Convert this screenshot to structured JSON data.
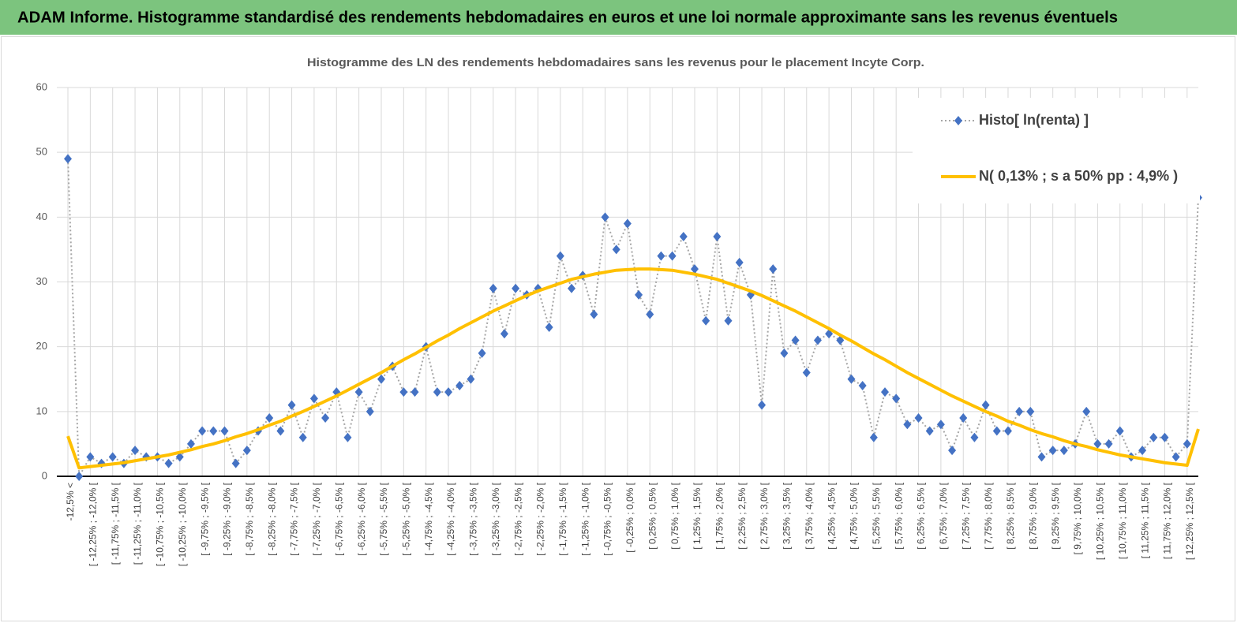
{
  "header": {
    "title": "ADAM Informe. Histogramme standardisé des rendements hebdomadaires en euros et une loi normale approximante sans les revenus éventuels"
  },
  "chart_data": {
    "type": "line",
    "title": "Histogramme  des LN des rendements hebdomadaires sans les  revenus pour le placement Incyte Corp.",
    "categories": [
      "-12,5% <",
      null,
      "[ -12,25% ; -12,0% [",
      null,
      "[ -11,75% ; -11,5% [",
      null,
      "[ -11,25% ; -11,0% [",
      null,
      "[ -10,75% ; -10,5% [",
      null,
      "[ -10,25% ; -10,0% [",
      null,
      "[ -9,75% ; -9,5% [",
      null,
      "[ -9,25% ; -9,0% [",
      null,
      "[ -8,75% ; -8,5% [",
      null,
      "[ -8,25% ; -8,0% [",
      null,
      "[ -7,75% ; -7,5% [",
      null,
      "[ -7,25% ; -7,0% [",
      null,
      "[ -6,75% ; -6,5% [",
      null,
      "[ -6,25% ; -6,0% [",
      null,
      "[ -5,75% ; -5,5% [",
      null,
      "[ -5,25% ; -5,0% [",
      null,
      "[ -4,75% ; -4,5% [",
      null,
      "[ -4,25% ; -4,0% [",
      null,
      "[ -3,75% ; -3,5% [",
      null,
      "[ -3,25% ; -3,0% [",
      null,
      "[ -2,75% ; -2,5% [",
      null,
      "[ -2,25% ; -2,0% [",
      null,
      "[ -1,75% ; -1,5% [",
      null,
      "[ -1,25% ; -1,0% [",
      null,
      "[ -0,75% ; -0,5% [",
      null,
      "[ -0,25% ; 0,0% [",
      null,
      "[ 0,25% ; 0,5% [",
      null,
      "[ 0,75% ; 1,0% [",
      null,
      "[ 1,25% ; 1,5% [",
      null,
      "[ 1,75% ; 2,0% [",
      null,
      "[ 2,25% ; 2,5% [",
      null,
      "[ 2,75% ; 3,0% [",
      null,
      "[ 3,25% ; 3,5% [",
      null,
      "[ 3,75% ; 4,0% [",
      null,
      "[ 4,25% ; 4,5% [",
      null,
      "[ 4,75% ; 5,0% [",
      null,
      "[ 5,25% ; 5,5% [",
      null,
      "[ 5,75% ; 6,0% [",
      null,
      "[ 6,25% ; 6,5% [",
      null,
      "[ 6,75% ; 7,0% [",
      null,
      "[ 7,25% ; 7,5% [",
      null,
      "[ 7,75% ; 8,0% [",
      null,
      "[ 8,25% ; 8,5% [",
      null,
      "[ 8,75% ; 9,0% [",
      null,
      "[ 9,25% ; 9,5% [",
      null,
      "[ 9,75% ; 10,0% [",
      null,
      "[ 10,25% ; 10,5% [",
      null,
      "[ 10,75% ; 11,0% [",
      null,
      "[ 11,25% ; 11,5% [",
      null,
      "[ 11,75% ; 12,0% [",
      null,
      "[ 12,25% ; 12,5% [",
      null
    ],
    "series": [
      {
        "name": "Histo[ ln(renta) ]",
        "color": "#4472c4",
        "line_color": "#a6a6a6",
        "marker": "diamond",
        "values": [
          49,
          0,
          3,
          2,
          3,
          2,
          4,
          3,
          3,
          2,
          3,
          5,
          7,
          7,
          7,
          2,
          4,
          7,
          9,
          7,
          11,
          6,
          12,
          9,
          13,
          6,
          13,
          10,
          15,
          17,
          13,
          13,
          20,
          13,
          13,
          14,
          15,
          19,
          29,
          22,
          29,
          28,
          29,
          23,
          34,
          29,
          31,
          25,
          40,
          35,
          39,
          28,
          25,
          34,
          34,
          37,
          32,
          24,
          37,
          24,
          33,
          28,
          11,
          32,
          19,
          21,
          16,
          21,
          22,
          21,
          15,
          14,
          6,
          13,
          12,
          8,
          9,
          7,
          8,
          4,
          9,
          6,
          11,
          7,
          7,
          10,
          10,
          3,
          4,
          4,
          5,
          10,
          5,
          5,
          7,
          3,
          4,
          6,
          6,
          3,
          5,
          43
        ]
      },
      {
        "name": "N( 0,13% ; s a 50% pp : 4,9% )",
        "color": "#ffc000",
        "marker": "none",
        "values": [
          6.2,
          1.3,
          1.5,
          1.7,
          1.9,
          2.1,
          2.4,
          2.7,
          3.0,
          3.3,
          3.7,
          4.1,
          4.6,
          5.0,
          5.5,
          6.1,
          6.6,
          7.2,
          7.9,
          8.5,
          9.3,
          10.0,
          10.8,
          11.6,
          12.4,
          13.3,
          14.2,
          15.1,
          16.0,
          17.0,
          18.0,
          18.9,
          19.9,
          20.9,
          21.8,
          22.8,
          23.7,
          24.6,
          25.5,
          26.3,
          27.1,
          27.9,
          28.6,
          29.2,
          29.8,
          30.4,
          30.8,
          31.2,
          31.5,
          31.8,
          31.9,
          32.0,
          32.0,
          31.9,
          31.8,
          31.5,
          31.2,
          30.8,
          30.4,
          29.8,
          29.2,
          28.6,
          27.9,
          27.1,
          26.3,
          25.5,
          24.6,
          23.7,
          22.8,
          21.8,
          20.9,
          19.9,
          18.9,
          18.0,
          17.0,
          16.0,
          15.1,
          14.2,
          13.3,
          12.4,
          11.6,
          10.8,
          10.0,
          9.3,
          8.5,
          7.9,
          7.2,
          6.6,
          6.1,
          5.5,
          5.0,
          4.6,
          4.1,
          3.7,
          3.3,
          3.0,
          2.7,
          2.4,
          2.1,
          1.9,
          1.7,
          7.3
        ]
      }
    ],
    "ylim": [
      0,
      60
    ],
    "yticks": [
      0,
      10,
      20,
      30,
      40,
      50,
      60
    ],
    "grid": true,
    "legend": "upper right"
  }
}
